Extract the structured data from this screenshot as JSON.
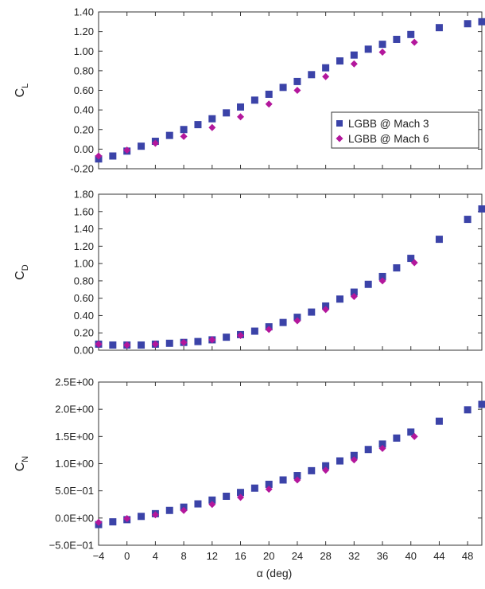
{
  "chart_data": [
    {
      "type": "scatter",
      "ylabel": "C",
      "ylabel_sub": "L",
      "ylim": [
        -0.2,
        1.4
      ],
      "yticks": [
        "1.40",
        "1.20",
        "1.00",
        "0.80",
        "0.60",
        "0.40",
        "0.20",
        "0.00",
        "-0.20"
      ],
      "ytick_values": [
        1.4,
        1.2,
        1.0,
        0.8,
        0.6,
        0.4,
        0.2,
        0.0,
        -0.2
      ],
      "legend": {
        "position": "right",
        "entries": [
          "LGBB @ Mach 3",
          "LGBB @ Mach 6"
        ]
      },
      "series": [
        {
          "name": "LGBB @ Mach 3",
          "marker": "square",
          "color": "#3b43a8",
          "x": [
            -4,
            -2,
            0,
            2,
            4,
            6,
            8,
            10,
            12,
            14,
            16,
            18,
            20,
            22,
            24,
            26,
            28,
            30,
            32,
            34,
            36,
            38,
            40,
            44,
            48,
            50
          ],
          "y": [
            -0.1,
            -0.07,
            -0.02,
            0.03,
            0.08,
            0.14,
            0.2,
            0.25,
            0.31,
            0.37,
            0.43,
            0.5,
            0.56,
            0.63,
            0.69,
            0.76,
            0.83,
            0.9,
            0.96,
            1.02,
            1.07,
            1.12,
            1.17,
            1.24,
            1.28,
            1.3
          ]
        },
        {
          "name": "LGBB @ Mach 6",
          "marker": "diamond",
          "color": "#b3179c",
          "x": [
            -4,
            0,
            4,
            8,
            12,
            16,
            20,
            24,
            28,
            32,
            36,
            40.5
          ],
          "y": [
            -0.07,
            -0.01,
            0.06,
            0.13,
            0.22,
            0.33,
            0.46,
            0.6,
            0.74,
            0.87,
            0.99,
            1.09
          ]
        }
      ]
    },
    {
      "type": "scatter",
      "ylabel": "C",
      "ylabel_sub": "D",
      "ylim": [
        0.0,
        1.8
      ],
      "yticks": [
        "1.80",
        "1.60",
        "1.40",
        "1.20",
        "1.00",
        "0.80",
        "0.60",
        "0.40",
        "0.20",
        "0.00"
      ],
      "ytick_values": [
        1.8,
        1.6,
        1.4,
        1.2,
        1.0,
        0.8,
        0.6,
        0.4,
        0.2,
        0.0
      ],
      "series": [
        {
          "name": "LGBB @ Mach 3",
          "marker": "square",
          "color": "#3b43a8",
          "x": [
            -4,
            -2,
            0,
            2,
            4,
            6,
            8,
            10,
            12,
            14,
            16,
            18,
            20,
            22,
            24,
            26,
            28,
            30,
            32,
            34,
            36,
            38,
            40,
            44,
            48,
            50
          ],
          "y": [
            0.07,
            0.06,
            0.06,
            0.06,
            0.07,
            0.08,
            0.09,
            0.1,
            0.12,
            0.15,
            0.18,
            0.22,
            0.27,
            0.32,
            0.38,
            0.44,
            0.51,
            0.59,
            0.67,
            0.76,
            0.85,
            0.95,
            1.06,
            1.28,
            1.51,
            1.63
          ]
        },
        {
          "name": "LGBB @ Mach 6",
          "marker": "diamond",
          "color": "#b3179c",
          "x": [
            -4,
            0,
            4,
            8,
            12,
            16,
            20,
            24,
            28,
            32,
            36,
            40.5
          ],
          "y": [
            0.07,
            0.06,
            0.07,
            0.09,
            0.12,
            0.17,
            0.24,
            0.34,
            0.47,
            0.62,
            0.8,
            1.01
          ]
        }
      ]
    },
    {
      "type": "scatter",
      "ylabel": "C",
      "ylabel_sub": "N",
      "xlabel": "α (deg)",
      "xticks": [
        "−4",
        "0",
        "4",
        "8",
        "12",
        "16",
        "20",
        "24",
        "28",
        "32",
        "36",
        "40",
        "44",
        "48"
      ],
      "xtick_values": [
        -4,
        0,
        4,
        8,
        12,
        16,
        20,
        24,
        28,
        32,
        36,
        40,
        44,
        48
      ],
      "xlim": [
        -4,
        50
      ],
      "ylim": [
        -0.5,
        2.5
      ],
      "yticks": [
        "2.5E+00",
        "2.0E+00",
        "1.5E+00",
        "1.0E+00",
        "5.0E−01",
        "0.0E+00",
        "−5.0E−01"
      ],
      "ytick_values": [
        2.5,
        2.0,
        1.5,
        1.0,
        0.5,
        0.0,
        -0.5
      ],
      "series": [
        {
          "name": "LGBB @ Mach 3",
          "marker": "square",
          "color": "#3b43a8",
          "x": [
            -4,
            -2,
            0,
            2,
            4,
            6,
            8,
            10,
            12,
            14,
            16,
            18,
            20,
            22,
            24,
            26,
            28,
            30,
            32,
            34,
            36,
            38,
            40,
            44,
            48,
            50
          ],
          "y": [
            -0.12,
            -0.07,
            -0.03,
            0.03,
            0.08,
            0.14,
            0.2,
            0.26,
            0.33,
            0.4,
            0.47,
            0.55,
            0.62,
            0.7,
            0.78,
            0.87,
            0.96,
            1.05,
            1.15,
            1.26,
            1.36,
            1.47,
            1.58,
            1.78,
            1.99,
            2.09
          ]
        },
        {
          "name": "LGBB @ Mach 6",
          "marker": "diamond",
          "color": "#b3179c",
          "x": [
            -4,
            0,
            4,
            8,
            12,
            16,
            20,
            24,
            28,
            32,
            36,
            40.5
          ],
          "y": [
            -0.08,
            -0.01,
            0.06,
            0.14,
            0.25,
            0.38,
            0.53,
            0.7,
            0.88,
            1.07,
            1.28,
            1.5
          ]
        }
      ]
    }
  ]
}
